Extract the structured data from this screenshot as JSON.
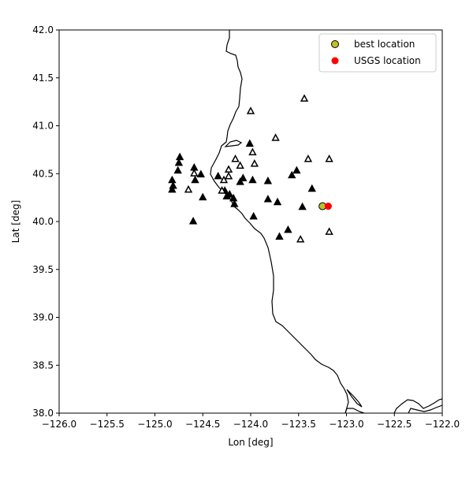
{
  "chart_data": {
    "type": "scatter",
    "title": "",
    "xlabel": "Lon [deg]",
    "ylabel": "Lat [deg]",
    "xlim": [
      -126.0,
      -122.0
    ],
    "ylim": [
      38.0,
      42.0
    ],
    "xticks": [
      -126.0,
      -125.5,
      -125.0,
      -124.5,
      -124.0,
      -123.5,
      -123.0,
      -122.5,
      -122.0
    ],
    "yticks": [
      38.0,
      38.5,
      39.0,
      39.5,
      40.0,
      40.5,
      41.0,
      41.5,
      42.0
    ],
    "xtick_labels": [
      "−126.0",
      "−125.5",
      "−125.0",
      "−124.5",
      "−124.0",
      "−123.5",
      "−123.0",
      "−122.5",
      "−122.0"
    ],
    "ytick_labels": [
      "38.0",
      "38.5",
      "39.0",
      "39.5",
      "40.0",
      "40.5",
      "41.0",
      "41.5",
      "42.0"
    ],
    "grid": false,
    "legend": {
      "location": "top-right",
      "entries": [
        {
          "label": "best location",
          "color": "#bfbf2a",
          "edge": "#000000",
          "marker": "circle"
        },
        {
          "label": "USGS location",
          "color": "#ff0000",
          "marker": "circle"
        }
      ]
    },
    "series": [
      {
        "name": "best location",
        "marker": "circle",
        "color": "#bfbf2a",
        "points": [
          [
            -123.25,
            40.16
          ]
        ]
      },
      {
        "name": "USGS location",
        "marker": "circle",
        "color": "#ff0000",
        "points": [
          [
            -123.19,
            40.16
          ]
        ]
      }
    ],
    "stations_filled": {
      "marker": "triangle",
      "color": "#000000",
      "points": [
        [
          -124.74,
          40.67
        ],
        [
          -124.75,
          40.61
        ],
        [
          -124.76,
          40.53
        ],
        [
          -124.82,
          40.43
        ],
        [
          -124.81,
          40.37
        ],
        [
          -124.82,
          40.33
        ],
        [
          -124.59,
          40.56
        ],
        [
          -124.58,
          40.43
        ],
        [
          -124.52,
          40.49
        ],
        [
          -124.5,
          40.25
        ],
        [
          -124.6,
          40.0
        ],
        [
          -124.34,
          40.47
        ],
        [
          -124.27,
          40.32
        ],
        [
          -124.25,
          40.26
        ],
        [
          -124.22,
          40.28
        ],
        [
          -124.18,
          40.24
        ],
        [
          -124.17,
          40.18
        ],
        [
          -124.11,
          40.41
        ],
        [
          -124.08,
          40.45
        ],
        [
          -123.98,
          40.43
        ],
        [
          -124.01,
          40.81
        ],
        [
          -123.97,
          40.05
        ],
        [
          -123.82,
          40.42
        ],
        [
          -123.82,
          40.23
        ],
        [
          -123.72,
          40.2
        ],
        [
          -123.7,
          39.84
        ],
        [
          -123.61,
          39.91
        ],
        [
          -123.57,
          40.48
        ],
        [
          -123.52,
          40.53
        ],
        [
          -123.46,
          40.15
        ],
        [
          -123.36,
          40.34
        ]
      ]
    },
    "stations_open": {
      "marker": "triangle",
      "color": "#ffffff",
      "edge": "#000000",
      "points": [
        [
          -124.59,
          40.5
        ],
        [
          -124.65,
          40.33
        ],
        [
          -124.28,
          40.43
        ],
        [
          -124.23,
          40.47
        ],
        [
          -124.23,
          40.54
        ],
        [
          -124.16,
          40.65
        ],
        [
          -124.11,
          40.58
        ],
        [
          -124.3,
          40.32
        ],
        [
          -123.98,
          40.72
        ],
        [
          -123.96,
          40.6
        ],
        [
          -124.0,
          41.15
        ],
        [
          -123.74,
          40.87
        ],
        [
          -123.44,
          41.28
        ],
        [
          -123.4,
          40.65
        ],
        [
          -123.48,
          39.81
        ],
        [
          -123.18,
          39.89
        ],
        [
          -123.18,
          40.65
        ]
      ]
    }
  }
}
